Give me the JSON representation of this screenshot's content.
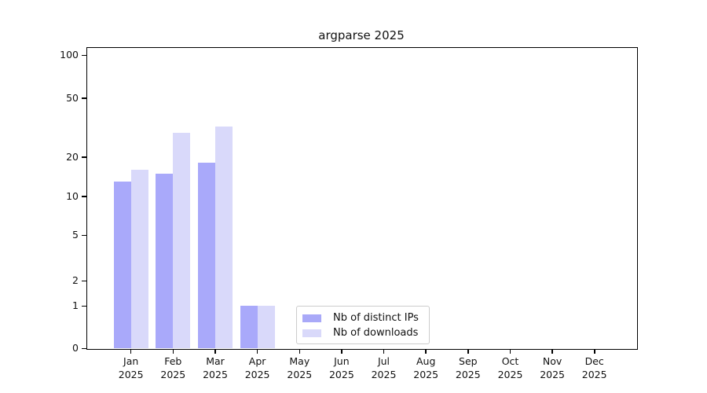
{
  "chart_data": {
    "type": "bar",
    "title": "argparse 2025",
    "x_axis": {
      "months": [
        "Jan",
        "Feb",
        "Mar",
        "Apr",
        "May",
        "Jun",
        "Jul",
        "Aug",
        "Sep",
        "Oct",
        "Nov",
        "Dec"
      ],
      "year": "2025"
    },
    "y_axis": {
      "ticks": [
        0,
        1,
        2,
        5,
        10,
        20,
        50,
        100
      ],
      "major_gridlines": [
        1,
        10,
        100
      ],
      "minor_gridlines": [
        2,
        3,
        4,
        5,
        6,
        7,
        8,
        9,
        20,
        30,
        40,
        50,
        60,
        70,
        80,
        90
      ],
      "scale": "log-like above 1, linear 0-1",
      "ylim": [
        0,
        113
      ],
      "grid": true
    },
    "series": [
      {
        "name": "Nb of distinct IPs",
        "color": "rgba(101,101,246,0.56)",
        "swatch_color": "#a9a9f8",
        "values": [
          13,
          15,
          18,
          1,
          0,
          0,
          0,
          0,
          0,
          0,
          0,
          0
        ]
      },
      {
        "name": "Nb of downloads",
        "color": "rgba(179,179,245,0.5)",
        "swatch_color": "#d9d9fa",
        "values": [
          16,
          29,
          32,
          1,
          0,
          0,
          0,
          0,
          0,
          0,
          0,
          0
        ]
      }
    ],
    "legend": {
      "position": "bottom-center-left",
      "entries": [
        "Nb of distinct IPs",
        "Nb of downloads"
      ]
    }
  }
}
